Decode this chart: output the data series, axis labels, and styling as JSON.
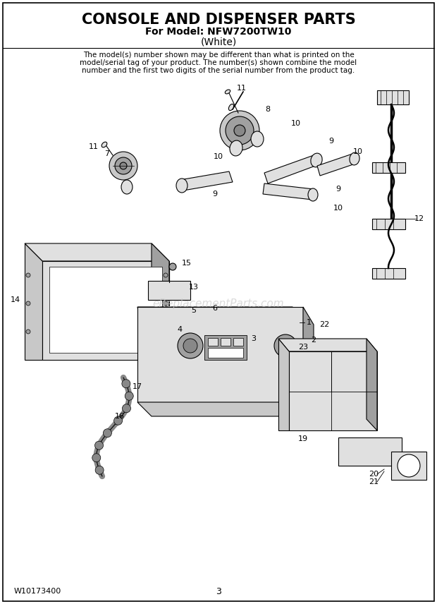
{
  "title": "CONSOLE AND DISPENSER PARTS",
  "subtitle": "For Model: NFW7200TW10",
  "subtitle2": "(White)",
  "disclaimer_line1": "The model(s) number shown may be different than what is printed on the",
  "disclaimer_line2": "model/serial tag of your product. The number(s) shown combine the model",
  "disclaimer_line3": "number and the first two digits of the serial number from the product tag.",
  "footer_left": "W10173400",
  "footer_center": "3",
  "bg": "#ffffff",
  "lc": "#000000",
  "gray1": "#c8c8c8",
  "gray2": "#e0e0e0",
  "gray3": "#a0a0a0",
  "gray4": "#888888",
  "watermark": "eReplacementParts.com",
  "watermark_color": "#cccccc"
}
